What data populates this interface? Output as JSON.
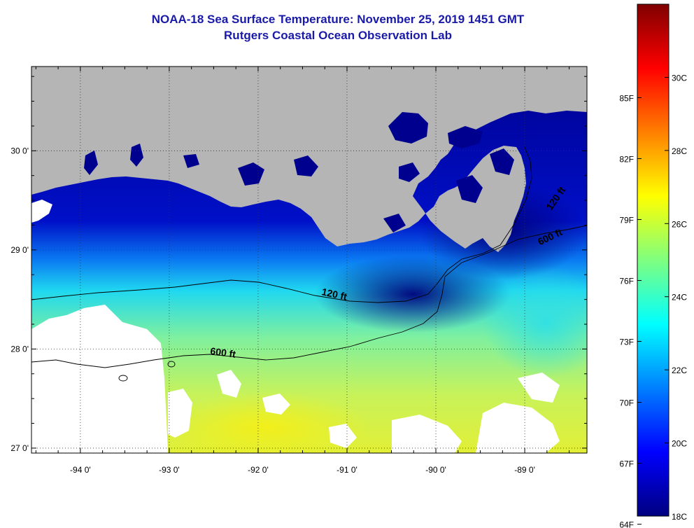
{
  "header": {
    "title": "NOAA-18 Sea Surface Temperature:  November 25, 2019 1451 GMT",
    "subtitle": "Rutgers Coastal Ocean Observation Lab"
  },
  "map": {
    "lon_range": [
      -94.55,
      -88.3
    ],
    "lat_range": [
      26.95,
      30.85
    ],
    "lon_ticks": [
      -94,
      -93,
      -92,
      -91,
      -90,
      -89
    ],
    "lat_ticks": [
      27,
      28,
      29,
      30
    ],
    "lon_labels": [
      "-94 0'",
      "-93 0'",
      "-92 0'",
      "-91 0'",
      "-90 0'",
      "-89 0'"
    ],
    "lat_labels": [
      "27 0'",
      "28 0'",
      "29 0'",
      "30 0'"
    ],
    "contour_labels": [
      {
        "text": "120 ft",
        "lon": -91.15,
        "lat": 28.52,
        "angle": 12
      },
      {
        "text": "600 ft",
        "lon": -92.4,
        "lat": 27.93,
        "angle": 8
      },
      {
        "text": "120 ft",
        "lon": -88.62,
        "lat": 29.5,
        "angle": -55
      },
      {
        "text": "600 ft",
        "lon": -88.7,
        "lat": 29.1,
        "angle": -25
      }
    ],
    "colors": {
      "land": "#b5b5b5",
      "cloud": "#ffffff",
      "frame": "#000000"
    }
  },
  "colorbar": {
    "fahrenheit_labels": [
      "64F",
      "67F",
      "70F",
      "73F",
      "76F",
      "79F",
      "82F",
      "85F"
    ],
    "celsius_labels": [
      "18C",
      "20C",
      "22C",
      "24C",
      "26C",
      "28C",
      "30C"
    ],
    "range_c": [
      18,
      32
    ],
    "stops": [
      "#00007f",
      "#0000ff",
      "#007fff",
      "#00ffff",
      "#7fff7f",
      "#ffff00",
      "#ff7f00",
      "#ff0000",
      "#7f0000"
    ]
  }
}
